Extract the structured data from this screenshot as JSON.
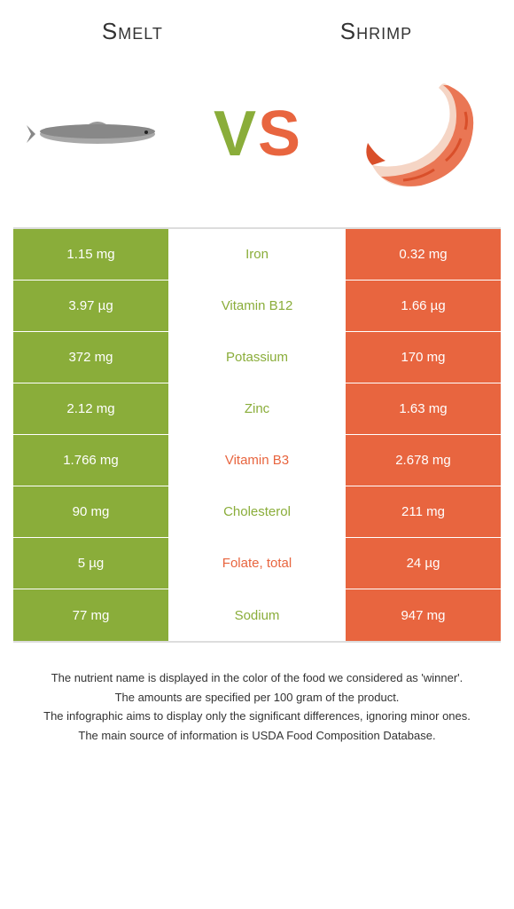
{
  "left_title": "Smelt",
  "right_title": "Shrimp",
  "vs": {
    "v": "V",
    "s": "S"
  },
  "colors": {
    "left": "#8aad3a",
    "right": "#e8653f",
    "left_text_winner": "#8aad3a",
    "right_text_winner": "#e8653f"
  },
  "rows": [
    {
      "left": "1.15 mg",
      "mid": "Iron",
      "right": "0.32 mg",
      "winner": "left"
    },
    {
      "left": "3.97 µg",
      "mid": "Vitamin B12",
      "right": "1.66 µg",
      "winner": "left"
    },
    {
      "left": "372 mg",
      "mid": "Potassium",
      "right": "170 mg",
      "winner": "left"
    },
    {
      "left": "2.12 mg",
      "mid": "Zinc",
      "right": "1.63 mg",
      "winner": "left"
    },
    {
      "left": "1.766 mg",
      "mid": "Vitamin B3",
      "right": "2.678 mg",
      "winner": "right"
    },
    {
      "left": "90 mg",
      "mid": "Cholesterol",
      "right": "211 mg",
      "winner": "left"
    },
    {
      "left": "5 µg",
      "mid": "Folate, total",
      "right": "24 µg",
      "winner": "right"
    },
    {
      "left": "77 mg",
      "mid": "Sodium",
      "right": "947 mg",
      "winner": "left"
    }
  ],
  "footer": [
    "The nutrient name is displayed in the color of the food we considered as 'winner'.",
    "The amounts are specified per 100 gram of the product.",
    "The infographic aims to display only the significant differences, ignoring minor ones.",
    "The main source of information is USDA Food Composition Database."
  ]
}
